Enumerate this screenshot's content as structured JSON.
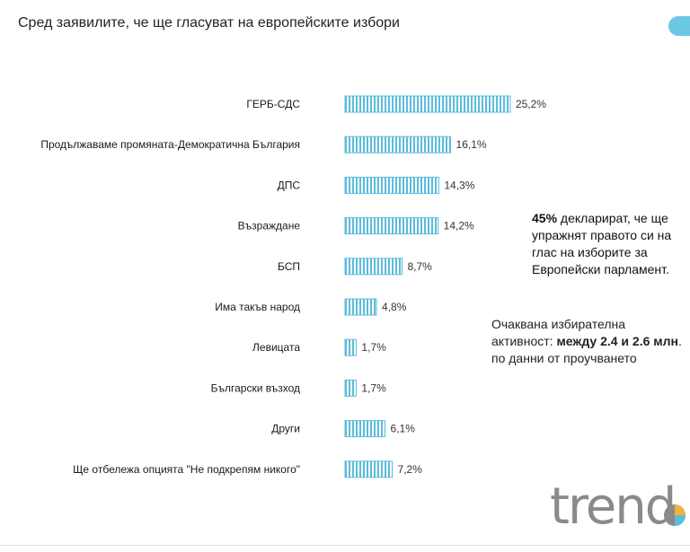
{
  "header": {
    "title": "Сред заявилите, че ще гласуват на европейските избори"
  },
  "notes": {
    "declared_bold": "45%",
    "declared_rest": " декларират, че ще упражнят правото си на глас на изборите за Европейски парламент.",
    "turnout_pre": "Очаквана избирателна активност: ",
    "turnout_bold": "между 2.4 и 2.6 млн",
    "turnout_post": ". по данни от проучването"
  },
  "logo": {
    "text": "trend"
  },
  "colors": {
    "bar": "#5bbcdc",
    "bar_gap": "#ffffff",
    "accent": "#6cc7e3"
  },
  "chart_data": {
    "type": "bar",
    "orientation": "horizontal",
    "categories": [
      "ГЕРБ-СДС",
      "Продължаваме промяната-Демократична България",
      "ДПС",
      "Възраждане",
      "БСП",
      "Има такъв народ",
      "Левицата",
      "Български възход",
      "Други",
      "Ще отбележа опцията \"Не подкрепям никого\""
    ],
    "values": [
      25.2,
      16.1,
      14.3,
      14.2,
      8.7,
      4.8,
      1.7,
      1.7,
      6.1,
      7.2
    ],
    "value_labels": [
      "25,2%",
      "16,1%",
      "14,3%",
      "14,2%",
      "8,7%",
      "4,8%",
      "1,7%",
      "1,7%",
      "6,1%",
      "7,2%"
    ],
    "grid": false,
    "legend": "none"
  }
}
